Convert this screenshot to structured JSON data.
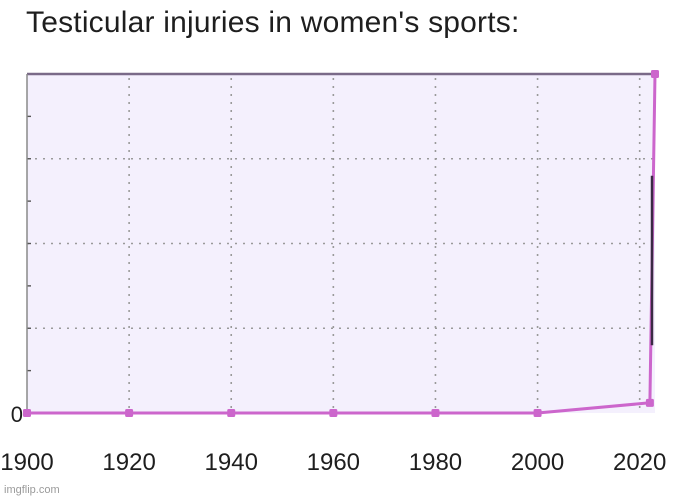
{
  "chart_data": {
    "type": "line",
    "title": "Testicular injuries in women's sports:",
    "xlabel": "",
    "ylabel": "",
    "x_ticks": [
      "1900",
      "1920",
      "1940",
      "1960",
      "1980",
      "2000",
      "2020"
    ],
    "y_ticks": [
      "0"
    ],
    "x_range": [
      1900,
      2023
    ],
    "y_range": [
      0,
      100
    ],
    "grid": true,
    "series": [
      {
        "color": "#cc66cc",
        "points": [
          {
            "x": 1900,
            "y": 0
          },
          {
            "x": 1920,
            "y": 0
          },
          {
            "x": 1940,
            "y": 0
          },
          {
            "x": 1960,
            "y": 0
          },
          {
            "x": 1980,
            "y": 0
          },
          {
            "x": 2000,
            "y": 0
          },
          {
            "x": 2022,
            "y": 3
          },
          {
            "x": 2023,
            "y": 100
          }
        ]
      }
    ],
    "colors": {
      "plot_background": "#f4f0fd",
      "grid": "#9a9a9a",
      "frame": "#7a6a88",
      "line": "#cc66cc"
    }
  },
  "watermark": "imgflip.com"
}
